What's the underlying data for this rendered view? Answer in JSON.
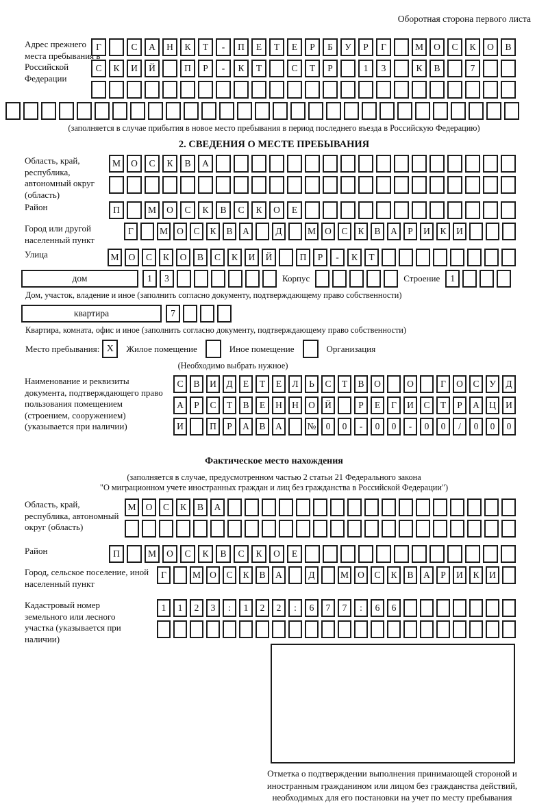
{
  "header_note": "Оборотная сторона первого листа",
  "prev_address": {
    "label": "Адрес прежнего места пребывания в Российской Федерации",
    "rows": [
      {
        "len": 24,
        "text": "Г САНКТ-ПЕТЕРБУРГ МОСКОВ"
      },
      {
        "len": 24,
        "text": "СКИЙ ПР-КТ СТР 13 КВ 7"
      },
      {
        "len": 24,
        "text": ""
      },
      {
        "len": 29,
        "text": ""
      }
    ],
    "note": "(заполняется в случае прибытия в новое место пребывания в период последнего въезда в Российскую Федерацию)"
  },
  "section2": {
    "title": "2. СВЕДЕНИЯ О МЕСТЕ ПРЕБЫВАНИЯ",
    "oblast": {
      "label": "Область, край, республика, автономный округ (область)",
      "rows": [
        {
          "len": 23,
          "text": "МОСКВА"
        },
        {
          "len": 23,
          "text": ""
        }
      ]
    },
    "raion": {
      "label": "Район",
      "row": {
        "len": 23,
        "text": "П МОСКВСКОЕ"
      }
    },
    "gorod": {
      "label": "Город или другой населенный пункт",
      "row": {
        "len": 24,
        "text": "Г МОСКВА Д МОСКВАРИКИ"
      }
    },
    "ulitsa": {
      "label": "Улица",
      "row": {
        "len": 24,
        "text": "МОСКОВСКИЙ ПР-КТ"
      }
    },
    "dom": {
      "label": "дом",
      "row": {
        "len": 8,
        "text": "13"
      }
    },
    "korpus": {
      "label": "Корпус",
      "row": {
        "len": 5,
        "text": ""
      }
    },
    "stroenie": {
      "label": "Строение",
      "row": {
        "len": 4,
        "text": "1"
      }
    },
    "dom_note": "Дом, участок, владение и иное (заполнить согласно документу, подтверждающему право собственности)",
    "kvartira": {
      "label": "квартира",
      "row": {
        "len": 4,
        "text": "7"
      }
    },
    "kvartira_note": "Квартира, комната, офис и иное (заполнить согласно документу, подтверждающему право собственности)",
    "mesto": {
      "label": "Место пребывания:",
      "options": [
        {
          "label": "Жилое помещение",
          "mark": "X"
        },
        {
          "label": "Иное помещение",
          "mark": ""
        },
        {
          "label": "Организация",
          "mark": ""
        }
      ],
      "note": "(Необходимо выбрать нужное)"
    },
    "document": {
      "label": "Наименование и реквизиты документа, подтверждающего право пользования помещением (строением, сооружением) (указывается при наличии)",
      "rows": [
        {
          "len": 21,
          "text": "СВИДЕТЕЛЬСТВО О ГОСУД"
        },
        {
          "len": 21,
          "text": "АРСТВЕННОЙ РЕГИСТРАЦИ"
        },
        {
          "len": 21,
          "text": "И ПРАВА №00-00-00/000"
        }
      ]
    }
  },
  "fact": {
    "title": "Фактическое место нахождения",
    "note1": "(заполняется в случае, предусмотренном частью 2 статьи 21 Федерального закона",
    "note2": "\"О миграционном учете иностранных граждан и лиц без гражданства в Российской Федерации\")",
    "oblast": {
      "label": "Область, край, республика, автономный округ (область)",
      "rows": [
        {
          "len": 23,
          "text": "МОСКВА"
        },
        {
          "len": 23,
          "text": ""
        }
      ]
    },
    "raion": {
      "label": "Район",
      "row": {
        "len": 23,
        "text": "П МОСКВСКОЕ"
      }
    },
    "gorod": {
      "label": "Город, сельское поселение, иной населенный пункт",
      "row": {
        "len": 22,
        "text": "Г МОСКВА Д МОСКВАРИКИ"
      }
    },
    "kadastr": {
      "label": "Кадастровый номер земельного или лесного участка (указывается при наличии)",
      "rows": [
        {
          "len": 22,
          "text": "1123:122:677:66"
        },
        {
          "len": 22,
          "text": ""
        }
      ]
    },
    "stamp_note": "Отметка о подтверждении выполнения принимающей стороной и иностранным гражданином или лицом без гражданства действий, необходимых для его постановки на учет по месту пребывания"
  }
}
